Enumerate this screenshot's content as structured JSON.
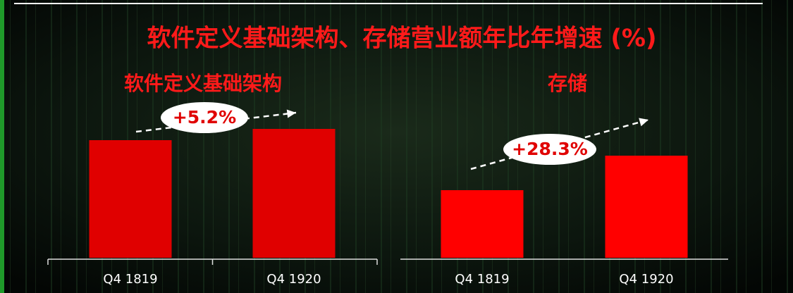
{
  "title": "软件定义基础架构、存储营业额年比年增速 (%)",
  "chart_data": [
    {
      "type": "bar",
      "title": "软件定义基础架构",
      "categories": [
        "Q4 1819",
        "Q4 1920"
      ],
      "values": [
        167,
        183
      ],
      "color": "#e00000",
      "ylim": [
        0,
        200
      ],
      "annotation": "+5.2%"
    },
    {
      "type": "bar",
      "title": "存储",
      "categories": [
        "Q4 1819",
        "Q4 1920"
      ],
      "values": [
        96,
        145
      ],
      "color": "#ff0000",
      "ylim": [
        0,
        200
      ],
      "annotation": "+28.3%"
    }
  ]
}
